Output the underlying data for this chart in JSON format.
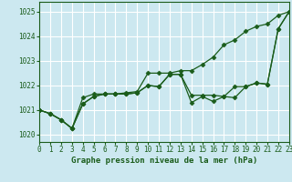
{
  "title": "Graphe pression niveau de la mer (hPa)",
  "background_color": "#cce8f0",
  "grid_color": "#ffffff",
  "line_color": "#1a5c1a",
  "xlim": [
    0,
    23
  ],
  "ylim": [
    1019.7,
    1025.4
  ],
  "yticks": [
    1020,
    1021,
    1022,
    1023,
    1024,
    1025
  ],
  "xticks": [
    0,
    1,
    2,
    3,
    4,
    5,
    6,
    7,
    8,
    9,
    10,
    11,
    12,
    13,
    14,
    15,
    16,
    17,
    18,
    19,
    20,
    21,
    22,
    23
  ],
  "series1": [
    1021.0,
    1020.85,
    1020.6,
    1020.25,
    1021.25,
    1021.55,
    1021.65,
    1021.65,
    1021.65,
    1021.7,
    1022.0,
    1021.95,
    1022.45,
    1022.45,
    1021.6,
    1021.6,
    1021.6,
    1021.55,
    1021.5,
    1021.95,
    1022.1,
    1022.05,
    1024.3,
    1025.0
  ],
  "series2": [
    1021.0,
    1020.85,
    1020.6,
    1020.25,
    1021.25,
    1021.55,
    1021.65,
    1021.65,
    1021.65,
    1021.7,
    1022.0,
    1021.95,
    1022.45,
    1022.45,
    1021.3,
    1021.55,
    1021.35,
    1021.55,
    1021.95,
    1021.95,
    1022.1,
    1022.05,
    1024.3,
    1025.0
  ],
  "series3": [
    1021.0,
    1020.85,
    1020.6,
    1020.25,
    1021.5,
    1021.65,
    1021.65,
    1021.65,
    1021.7,
    1021.75,
    1022.5,
    1022.5,
    1022.5,
    1022.6,
    1022.6,
    1022.85,
    1023.15,
    1023.65,
    1023.85,
    1024.2,
    1024.4,
    1024.5,
    1024.85,
    1025.0
  ],
  "markersize": 2.5,
  "linewidth": 0.9
}
